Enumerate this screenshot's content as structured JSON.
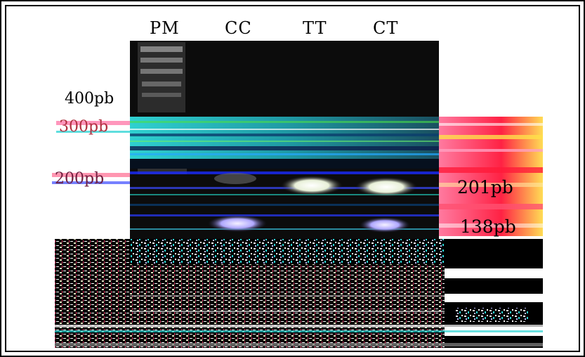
{
  "lanes": {
    "pm": "PM",
    "cc": "CC",
    "tt": "TT",
    "ct": "CT"
  },
  "markers": {
    "m400": "400pb",
    "m300": "300pb",
    "m200": "200pb"
  },
  "bands": {
    "b201": "201pb",
    "b138": "138pb"
  },
  "colors": {
    "gel": "#0a0a0a",
    "band": "#f2f2e0",
    "artifact_cyan": "#27c9c9",
    "artifact_magenta": "#ff2a5a",
    "artifact_blue": "#1b2bff"
  }
}
